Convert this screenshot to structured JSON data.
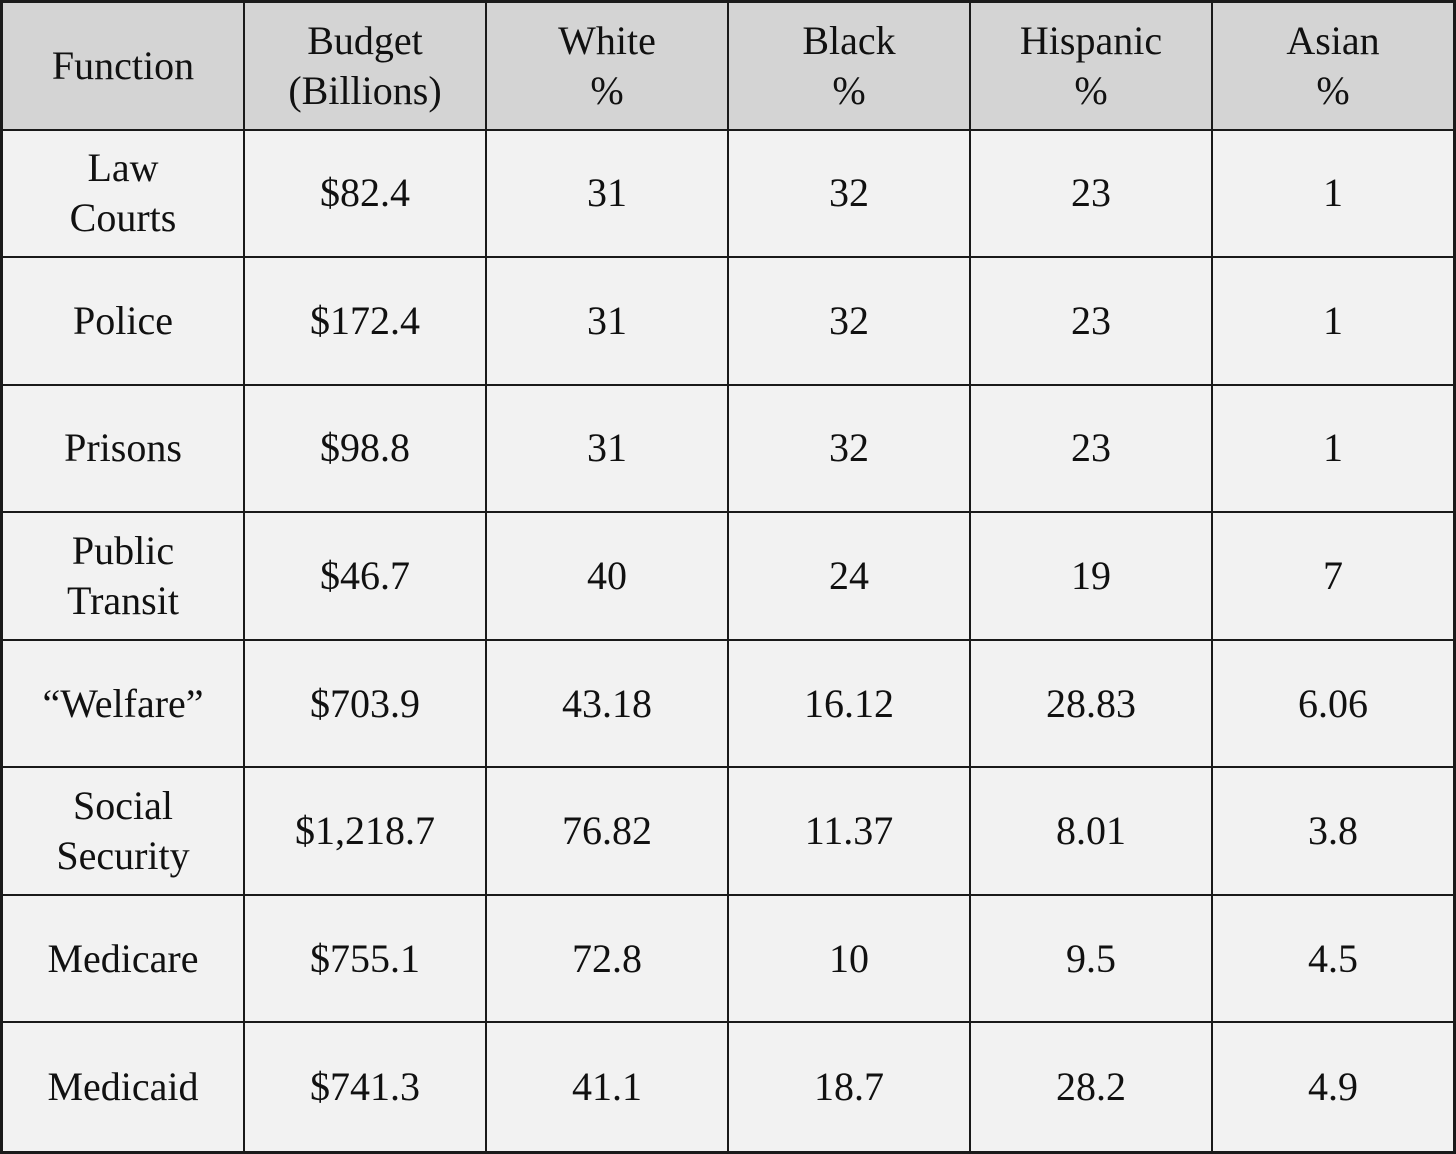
{
  "table": {
    "headers": [
      "Function",
      "Budget\n(Billions)",
      "White\n%",
      "Black\n%",
      "Hispanic\n%",
      "Asian\n%"
    ],
    "rows": [
      [
        "Law\nCourts",
        "$82.4",
        "31",
        "32",
        "23",
        "1"
      ],
      [
        "Police",
        "$172.4",
        "31",
        "32",
        "23",
        "1"
      ],
      [
        "Prisons",
        "$98.8",
        "31",
        "32",
        "23",
        "1"
      ],
      [
        "Public\nTransit",
        "$46.7",
        "40",
        "24",
        "19",
        "7"
      ],
      [
        "“Welfare”",
        "$703.9",
        "43.18",
        "16.12",
        "28.83",
        "6.06"
      ],
      [
        "Social\nSecurity",
        "$1,218.7",
        "76.82",
        "11.37",
        "8.01",
        "3.8"
      ],
      [
        "Medicare",
        "$755.1",
        "72.8",
        "10",
        "9.5",
        "4.5"
      ],
      [
        "Medicaid",
        "$741.3",
        "41.1",
        "18.7",
        "28.2",
        "4.9"
      ]
    ]
  },
  "colors": {
    "header_bg": "#d4d4d4",
    "cell_bg": "#f2f2f2",
    "border": "#1a1a1a",
    "text": "#111111"
  }
}
